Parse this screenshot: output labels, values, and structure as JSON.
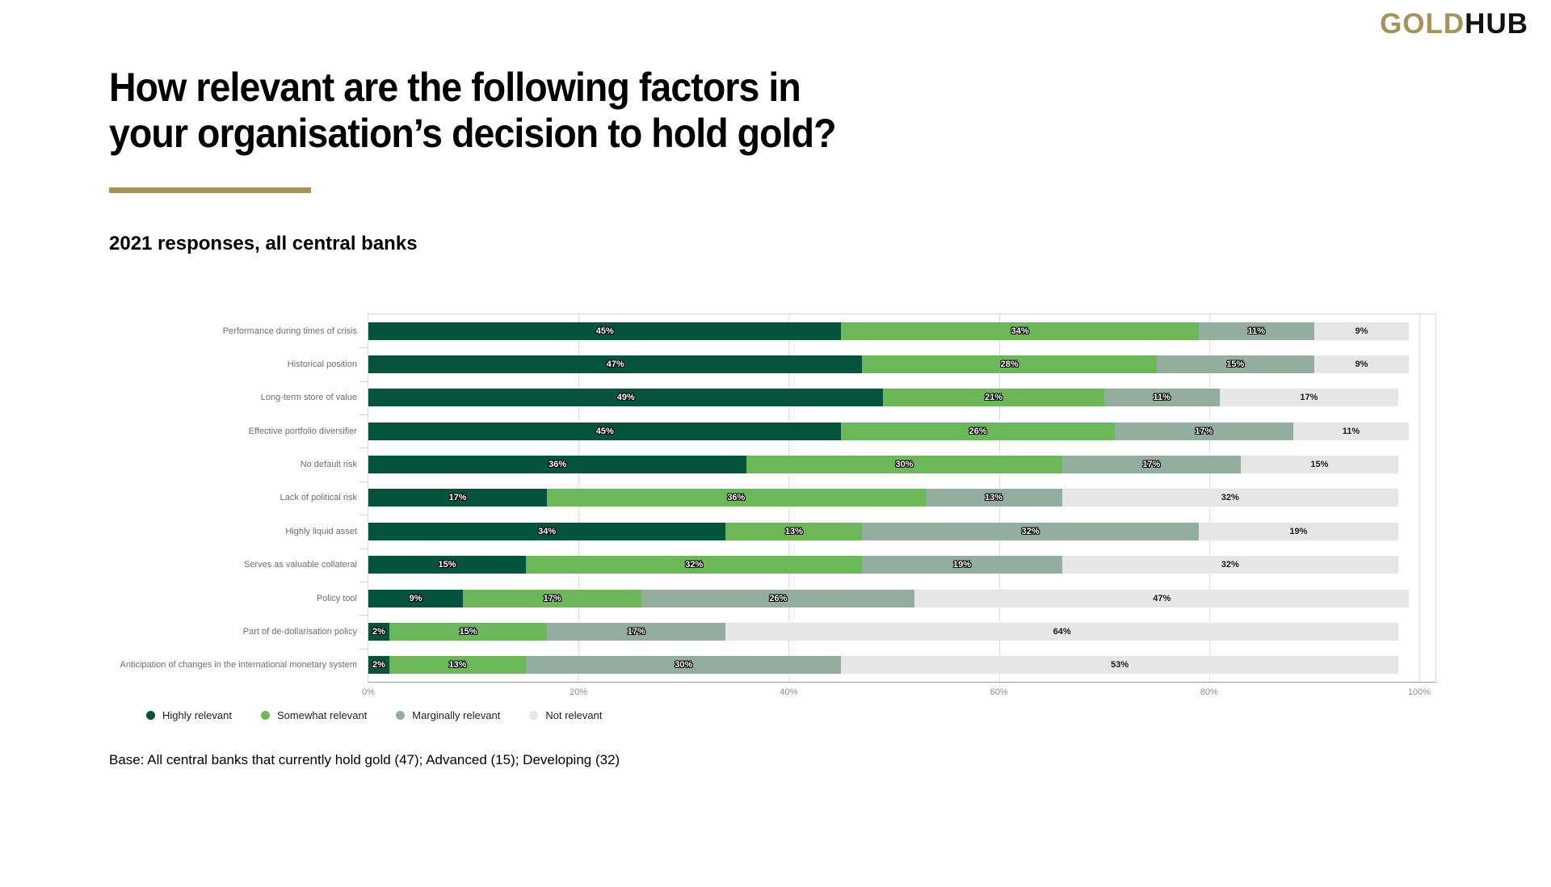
{
  "logo": {
    "part_gold": "GOLD",
    "part_hub": "HUB"
  },
  "accent_color": "#A6925C",
  "title": {
    "line1": "How relevant are the following factors in",
    "line2": "your organisation’s decision to hold gold?"
  },
  "subtitle": "2021 responses, all central banks",
  "base_note": "Base: All central banks that currently hold gold (47); Advanced (15); Developing (32)",
  "chart_data": {
    "type": "bar",
    "orientation": "horizontal",
    "stacked": true,
    "value_suffix": "%",
    "xlim": [
      0,
      100
    ],
    "x_ticks": [
      "0%",
      "20%",
      "40%",
      "60%",
      "80%",
      "100%"
    ],
    "grid": "vertical-dotted",
    "legend_position": "bottom-left",
    "categories": [
      "Performance during times of crisis",
      "Historical position",
      "Long-term store of value",
      "Effective portfolio diversifier",
      "No default risk",
      "Lack of political risk",
      "Highly liquid asset",
      "Serves as valuable collateral",
      "Policy tool",
      "Part of de-dollarisation policy",
      "Anticipation of changes in the international monetary system"
    ],
    "series": [
      {
        "name": "Highly relevant",
        "color": "#03533D",
        "values": [
          45,
          47,
          49,
          45,
          36,
          17,
          34,
          15,
          9,
          2,
          2
        ]
      },
      {
        "name": "Somewhat relevant",
        "color": "#6CB858",
        "values": [
          34,
          28,
          21,
          26,
          30,
          36,
          13,
          32,
          17,
          15,
          13
        ]
      },
      {
        "name": "Marginally relevant",
        "color": "#93AE9E",
        "values": [
          11,
          15,
          11,
          17,
          17,
          13,
          32,
          19,
          26,
          17,
          30
        ]
      },
      {
        "name": "Not relevant",
        "color": "#E6E6E6",
        "values": [
          9,
          9,
          17,
          11,
          15,
          32,
          19,
          32,
          47,
          64,
          53
        ]
      }
    ]
  }
}
